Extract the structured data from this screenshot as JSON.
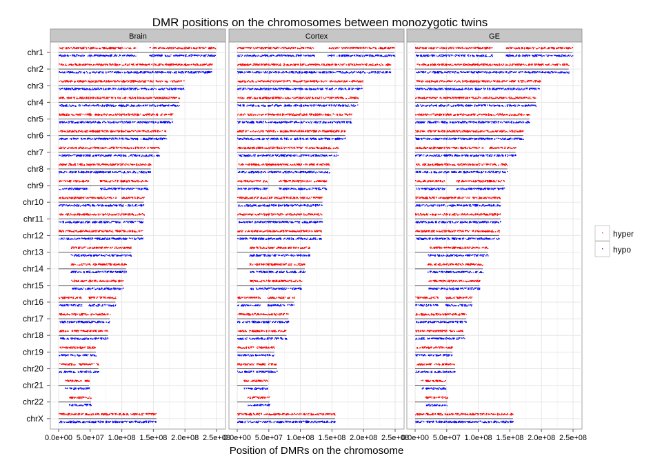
{
  "chart_data": {
    "type": "scatter",
    "title": "DMR positions on the chromosomes between monozygotic twins",
    "xlabel": "Position of DMRs on the chromosome",
    "ylabel": "",
    "xlim": [
      0,
      250000000
    ],
    "x_ticks": [
      0,
      50000000,
      100000000,
      150000000,
      200000000,
      250000000
    ],
    "x_tick_labels": [
      "0.0e+00",
      "5.0e+07",
      "1.0e+08",
      "1.5e+08",
      "2.0e+08",
      "2.5e+08"
    ],
    "grid": true,
    "legend_position": "right",
    "facets": [
      "Brain",
      "Cortex",
      "GE"
    ],
    "series": [
      {
        "name": "hyper",
        "color": "#ff0000"
      },
      {
        "name": "hypo",
        "color": "#0000ff"
      }
    ],
    "chromosomes": [
      {
        "name": "chr1",
        "length": 249000000
      },
      {
        "name": "chr2",
        "length": 243000000
      },
      {
        "name": "chr3",
        "length": 198000000
      },
      {
        "name": "chr4",
        "length": 191000000
      },
      {
        "name": "chr5",
        "length": 181000000
      },
      {
        "name": "chr6",
        "length": 171000000
      },
      {
        "name": "chr7",
        "length": 159000000
      },
      {
        "name": "chr8",
        "length": 146000000
      },
      {
        "name": "chr9",
        "length": 141000000
      },
      {
        "name": "chr10",
        "length": 135000000
      },
      {
        "name": "chr11",
        "length": 135000000
      },
      {
        "name": "chr12",
        "length": 133000000
      },
      {
        "name": "chr13",
        "length": 115000000
      },
      {
        "name": "chr14",
        "length": 107000000
      },
      {
        "name": "chr15",
        "length": 102000000
      },
      {
        "name": "chr16",
        "length": 90000000
      },
      {
        "name": "chr17",
        "length": 81000000
      },
      {
        "name": "chr18",
        "length": 78000000
      },
      {
        "name": "chr19",
        "length": 59000000
      },
      {
        "name": "chr20",
        "length": 63000000
      },
      {
        "name": "chr21",
        "length": 48000000
      },
      {
        "name": "chr22",
        "length": 51000000
      },
      {
        "name": "chrX",
        "length": 155000000
      }
    ],
    "dmr_ranges": {
      "chr1": {
        "hyper": [
          [
            0,
            122000000
          ],
          [
            143000000,
            249000000
          ]
        ],
        "hypo": [
          [
            0,
            122000000
          ],
          [
            143000000,
            249000000
          ]
        ]
      },
      "chr2": {
        "hyper": [
          [
            0,
            243000000
          ]
        ],
        "hypo": [
          [
            0,
            243000000
          ]
        ]
      },
      "chr3": {
        "hyper": [
          [
            0,
            198000000
          ]
        ],
        "hypo": [
          [
            0,
            198000000
          ]
        ]
      },
      "chr4": {
        "hyper": [
          [
            0,
            191000000
          ]
        ],
        "hypo": [
          [
            0,
            191000000
          ]
        ]
      },
      "chr5": {
        "hyper": [
          [
            0,
            181000000
          ]
        ],
        "hypo": [
          [
            0,
            181000000
          ]
        ]
      },
      "chr6": {
        "hyper": [
          [
            0,
            171000000
          ]
        ],
        "hypo": [
          [
            0,
            171000000
          ]
        ]
      },
      "chr7": {
        "hyper": [
          [
            0,
            159000000
          ]
        ],
        "hypo": [
          [
            0,
            159000000
          ]
        ]
      },
      "chr8": {
        "hyper": [
          [
            0,
            146000000
          ]
        ],
        "hypo": [
          [
            0,
            146000000
          ]
        ]
      },
      "chr9": {
        "hyper": [
          [
            0,
            47000000
          ],
          [
            65000000,
            141000000
          ]
        ],
        "hypo": [
          [
            0,
            47000000
          ],
          [
            65000000,
            141000000
          ]
        ]
      },
      "chr10": {
        "hyper": [
          [
            0,
            135000000
          ]
        ],
        "hypo": [
          [
            0,
            135000000
          ]
        ]
      },
      "chr11": {
        "hyper": [
          [
            0,
            135000000
          ]
        ],
        "hypo": [
          [
            0,
            135000000
          ]
        ]
      },
      "chr12": {
        "hyper": [
          [
            0,
            133000000
          ]
        ],
        "hypo": [
          [
            0,
            133000000
          ]
        ]
      },
      "chr13": {
        "hyper": [
          [
            19000000,
            115000000
          ]
        ],
        "hypo": [
          [
            19000000,
            115000000
          ]
        ]
      },
      "chr14": {
        "hyper": [
          [
            19000000,
            107000000
          ]
        ],
        "hypo": [
          [
            19000000,
            107000000
          ]
        ]
      },
      "chr15": {
        "hyper": [
          [
            20000000,
            102000000
          ]
        ],
        "hypo": [
          [
            20000000,
            102000000
          ]
        ]
      },
      "chr16": {
        "hyper": [
          [
            0,
            36000000
          ],
          [
            47000000,
            90000000
          ]
        ],
        "hypo": [
          [
            0,
            36000000
          ],
          [
            47000000,
            90000000
          ]
        ]
      },
      "chr17": {
        "hyper": [
          [
            0,
            81000000
          ]
        ],
        "hypo": [
          [
            0,
            81000000
          ]
        ]
      },
      "chr18": {
        "hyper": [
          [
            0,
            15000000
          ],
          [
            18000000,
            78000000
          ]
        ],
        "hypo": [
          [
            0,
            15000000
          ],
          [
            18000000,
            78000000
          ]
        ]
      },
      "chr19": {
        "hyper": [
          [
            0,
            26000000
          ],
          [
            28000000,
            59000000
          ]
        ],
        "hypo": [
          [
            0,
            26000000
          ],
          [
            28000000,
            59000000
          ]
        ]
      },
      "chr20": {
        "hyper": [
          [
            0,
            26000000
          ],
          [
            30000000,
            63000000
          ]
        ],
        "hypo": [
          [
            0,
            26000000
          ],
          [
            30000000,
            63000000
          ]
        ]
      },
      "chr21": {
        "hyper": [
          [
            9000000,
            48000000
          ]
        ],
        "hypo": [
          [
            9000000,
            48000000
          ]
        ]
      },
      "chr22": {
        "hyper": [
          [
            16000000,
            51000000
          ]
        ],
        "hypo": [
          [
            16000000,
            51000000
          ]
        ]
      },
      "chrX": {
        "hyper": [
          [
            0,
            155000000
          ]
        ],
        "hypo": [
          [
            0,
            155000000
          ]
        ]
      }
    }
  }
}
